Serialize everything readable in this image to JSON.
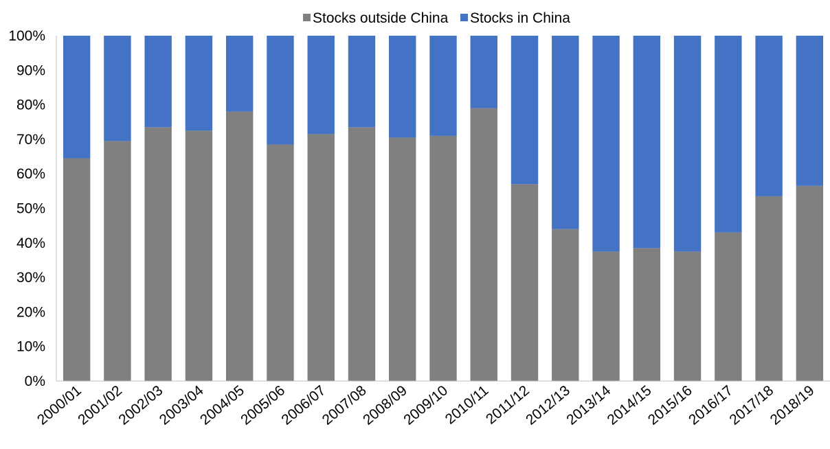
{
  "chart_data": {
    "type": "bar",
    "stacked": true,
    "percent_stacked": true,
    "categories": [
      "2000/01",
      "2001/02",
      "2002/03",
      "2003/04",
      "2004/05",
      "2005/06",
      "2006/07",
      "2007/08",
      "2008/09",
      "2009/10",
      "2010/11",
      "2011/12",
      "2012/13",
      "2013/14",
      "2014/15",
      "2015/16",
      "2016/17",
      "2017/18",
      "2018/19"
    ],
    "series": [
      {
        "name": "Stocks outside China",
        "color": "#808080",
        "values": [
          64.5,
          69.5,
          73.5,
          72.5,
          78,
          68.5,
          71.5,
          73.5,
          70.5,
          71,
          79,
          57,
          44,
          37.5,
          38.5,
          37.5,
          43,
          53.5,
          56.5
        ]
      },
      {
        "name": "Stocks in China",
        "color": "#4472C4",
        "values": [
          35.5,
          30.5,
          26.5,
          27.5,
          22,
          31.5,
          28.5,
          26.5,
          29.5,
          29,
          21,
          43,
          56,
          62.5,
          61.5,
          62.5,
          57,
          46.5,
          43.5
        ]
      }
    ],
    "ylim": [
      0,
      100
    ],
    "yticks": [
      "0%",
      "10%",
      "20%",
      "30%",
      "40%",
      "50%",
      "60%",
      "70%",
      "80%",
      "90%",
      "100%"
    ],
    "legend_position": "top-center",
    "grid": false,
    "title": "",
    "xlabel": "",
    "ylabel": ""
  }
}
